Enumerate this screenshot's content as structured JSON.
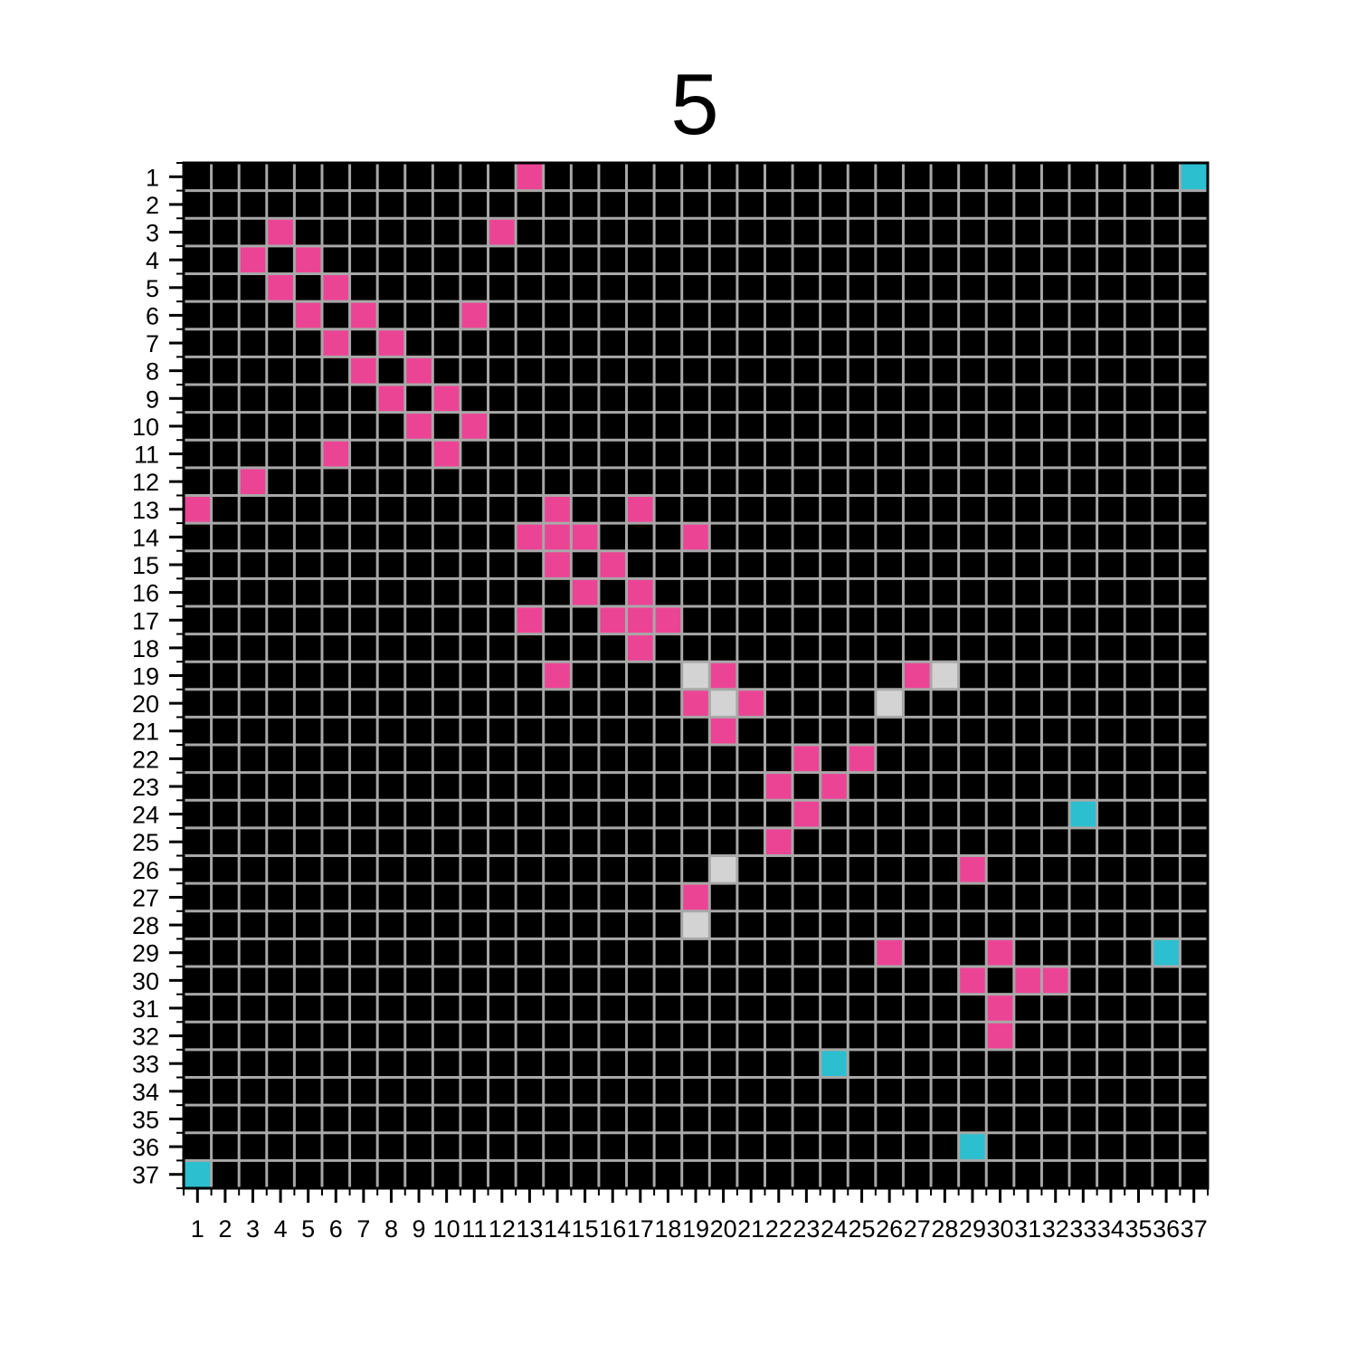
{
  "chart_data": {
    "type": "heatmap",
    "title": "5",
    "xlabel": "",
    "ylabel": "",
    "x_ticks": [
      "1",
      "2",
      "3",
      "4",
      "5",
      "6",
      "7",
      "8",
      "9",
      "10",
      "11",
      "12",
      "13",
      "14",
      "15",
      "16",
      "17",
      "18",
      "19",
      "20",
      "21",
      "22",
      "23",
      "24",
      "25",
      "26",
      "27",
      "28",
      "29",
      "30",
      "31",
      "32",
      "33",
      "34",
      "35",
      "36",
      "37"
    ],
    "y_ticks": [
      "1",
      "2",
      "3",
      "4",
      "5",
      "6",
      "7",
      "8",
      "9",
      "10",
      "11",
      "12",
      "13",
      "14",
      "15",
      "16",
      "17",
      "18",
      "19",
      "20",
      "21",
      "22",
      "23",
      "24",
      "25",
      "26",
      "27",
      "28",
      "29",
      "30",
      "31",
      "32",
      "33",
      "34",
      "35",
      "36",
      "37"
    ],
    "grid": true,
    "colors": {
      "background": "#000000",
      "grid": "#a8a8a8",
      "pink": "#ec4495",
      "cyan": "#2cbfcf",
      "gray": "#d3d3d3"
    },
    "cells": [
      {
        "row": 1,
        "col": 13,
        "category": "pink"
      },
      {
        "row": 1,
        "col": 37,
        "category": "cyan"
      },
      {
        "row": 3,
        "col": 4,
        "category": "pink"
      },
      {
        "row": 3,
        "col": 12,
        "category": "pink"
      },
      {
        "row": 4,
        "col": 3,
        "category": "pink"
      },
      {
        "row": 4,
        "col": 5,
        "category": "pink"
      },
      {
        "row": 5,
        "col": 4,
        "category": "pink"
      },
      {
        "row": 5,
        "col": 6,
        "category": "pink"
      },
      {
        "row": 6,
        "col": 5,
        "category": "pink"
      },
      {
        "row": 6,
        "col": 7,
        "category": "pink"
      },
      {
        "row": 6,
        "col": 11,
        "category": "pink"
      },
      {
        "row": 7,
        "col": 6,
        "category": "pink"
      },
      {
        "row": 7,
        "col": 8,
        "category": "pink"
      },
      {
        "row": 8,
        "col": 7,
        "category": "pink"
      },
      {
        "row": 8,
        "col": 9,
        "category": "pink"
      },
      {
        "row": 9,
        "col": 8,
        "category": "pink"
      },
      {
        "row": 9,
        "col": 10,
        "category": "pink"
      },
      {
        "row": 10,
        "col": 9,
        "category": "pink"
      },
      {
        "row": 10,
        "col": 11,
        "category": "pink"
      },
      {
        "row": 11,
        "col": 6,
        "category": "pink"
      },
      {
        "row": 11,
        "col": 10,
        "category": "pink"
      },
      {
        "row": 12,
        "col": 3,
        "category": "pink"
      },
      {
        "row": 13,
        "col": 1,
        "category": "pink"
      },
      {
        "row": 13,
        "col": 14,
        "category": "pink"
      },
      {
        "row": 13,
        "col": 17,
        "category": "pink"
      },
      {
        "row": 14,
        "col": 13,
        "category": "pink"
      },
      {
        "row": 14,
        "col": 14,
        "category": "pink"
      },
      {
        "row": 14,
        "col": 15,
        "category": "pink"
      },
      {
        "row": 14,
        "col": 19,
        "category": "pink"
      },
      {
        "row": 15,
        "col": 14,
        "category": "pink"
      },
      {
        "row": 15,
        "col": 16,
        "category": "pink"
      },
      {
        "row": 16,
        "col": 15,
        "category": "pink"
      },
      {
        "row": 16,
        "col": 17,
        "category": "pink"
      },
      {
        "row": 17,
        "col": 13,
        "category": "pink"
      },
      {
        "row": 17,
        "col": 16,
        "category": "pink"
      },
      {
        "row": 17,
        "col": 17,
        "category": "pink"
      },
      {
        "row": 17,
        "col": 18,
        "category": "pink"
      },
      {
        "row": 18,
        "col": 17,
        "category": "pink"
      },
      {
        "row": 19,
        "col": 14,
        "category": "pink"
      },
      {
        "row": 19,
        "col": 19,
        "category": "gray"
      },
      {
        "row": 19,
        "col": 20,
        "category": "pink"
      },
      {
        "row": 19,
        "col": 27,
        "category": "pink"
      },
      {
        "row": 19,
        "col": 28,
        "category": "gray"
      },
      {
        "row": 20,
        "col": 19,
        "category": "pink"
      },
      {
        "row": 20,
        "col": 20,
        "category": "gray"
      },
      {
        "row": 20,
        "col": 21,
        "category": "pink"
      },
      {
        "row": 20,
        "col": 26,
        "category": "gray"
      },
      {
        "row": 21,
        "col": 20,
        "category": "pink"
      },
      {
        "row": 22,
        "col": 23,
        "category": "pink"
      },
      {
        "row": 22,
        "col": 25,
        "category": "pink"
      },
      {
        "row": 23,
        "col": 22,
        "category": "pink"
      },
      {
        "row": 23,
        "col": 24,
        "category": "pink"
      },
      {
        "row": 24,
        "col": 23,
        "category": "pink"
      },
      {
        "row": 24,
        "col": 33,
        "category": "cyan"
      },
      {
        "row": 25,
        "col": 22,
        "category": "pink"
      },
      {
        "row": 26,
        "col": 20,
        "category": "gray"
      },
      {
        "row": 26,
        "col": 29,
        "category": "pink"
      },
      {
        "row": 27,
        "col": 19,
        "category": "pink"
      },
      {
        "row": 28,
        "col": 19,
        "category": "gray"
      },
      {
        "row": 29,
        "col": 26,
        "category": "pink"
      },
      {
        "row": 29,
        "col": 30,
        "category": "pink"
      },
      {
        "row": 29,
        "col": 36,
        "category": "cyan"
      },
      {
        "row": 30,
        "col": 29,
        "category": "pink"
      },
      {
        "row": 30,
        "col": 31,
        "category": "pink"
      },
      {
        "row": 30,
        "col": 32,
        "category": "pink"
      },
      {
        "row": 31,
        "col": 30,
        "category": "pink"
      },
      {
        "row": 32,
        "col": 30,
        "category": "pink"
      },
      {
        "row": 33,
        "col": 24,
        "category": "cyan"
      },
      {
        "row": 36,
        "col": 29,
        "category": "cyan"
      },
      {
        "row": 37,
        "col": 1,
        "category": "cyan"
      }
    ]
  }
}
